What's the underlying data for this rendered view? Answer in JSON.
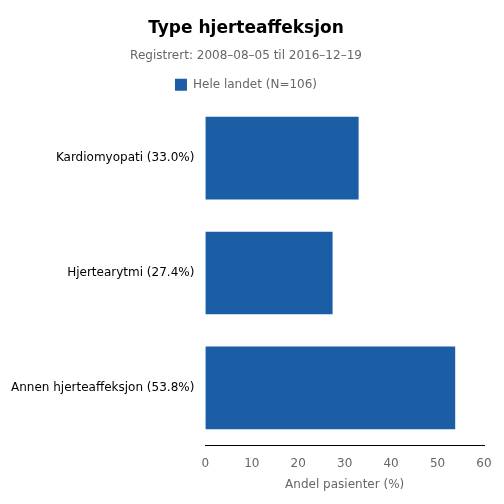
{
  "chart_data": {
    "type": "bar",
    "orientation": "horizontal",
    "title": "Type hjerteaffeksjon",
    "subtitle": "Registrert: 2008–08–05 til 2016–12–19",
    "xlabel": "Andel pasienter (%)",
    "categories": [
      "Annen hjerteaffeksjon (53.8%)",
      "Hjertearytmi (27.4%)",
      "Kardiomyopati (33.0%)"
    ],
    "series": [
      {
        "name": "Hele landet (N=106)",
        "color": "#1B5EA6",
        "values": [
          53.8,
          27.4,
          33.0
        ]
      }
    ],
    "xlim": [
      0,
      60
    ],
    "xticks": [
      0,
      10,
      20,
      30,
      40,
      50,
      60
    ],
    "grid": false,
    "legend": "top"
  }
}
